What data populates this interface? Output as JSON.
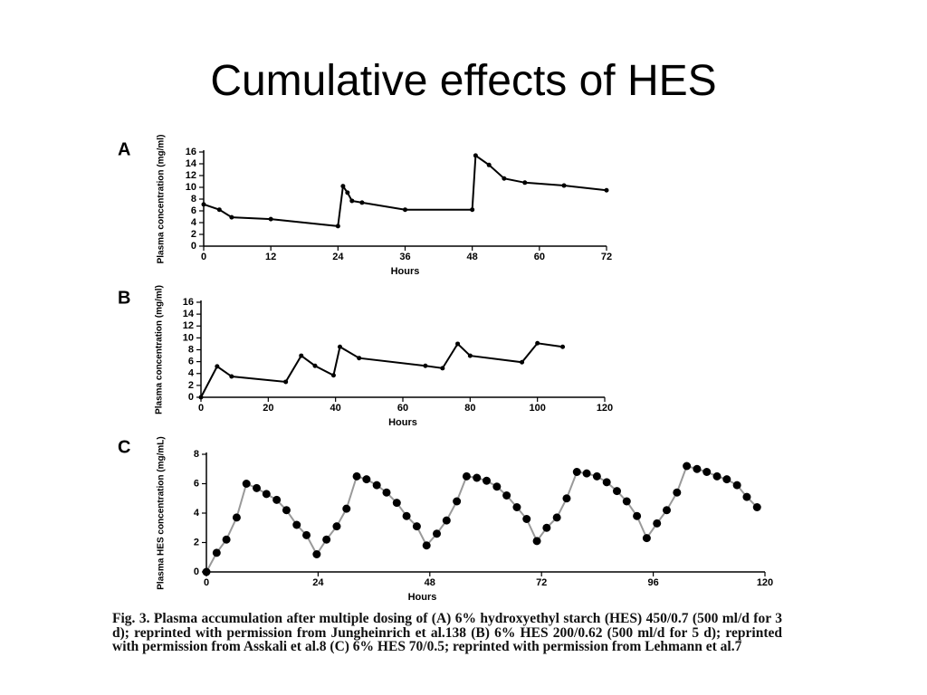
{
  "slide_title": "Cumulative effects of HES",
  "caption": "Fig. 3. Plasma accumulation after multiple dosing of (A) 6% hydroxyethyl starch (HES) 450/0.7 (500 ml/d for 3 d); reprinted with permission from Jungheinrich et al.138 (B) 6% HES 200/0.62 (500 ml/d for 5 d); reprinted with permission from Asskali et al.8 (C) 6% HES 70/0.5; reprinted with permission from Lehmann et al.7",
  "chart_data": [
    {
      "type": "line",
      "panel": "A",
      "ylabel": "Plasma concentration (mg/ml)",
      "xlabel": "Hours",
      "x": [
        0,
        2.8,
        5,
        12,
        24,
        24.9,
        25.7,
        26.5,
        28.3,
        36,
        48,
        48.6,
        51,
        53.7,
        57.4,
        64.4,
        72
      ],
      "values": [
        7.1,
        6.2,
        4.9,
        4.6,
        3.4,
        10.2,
        9.1,
        7.7,
        7.4,
        6.2,
        6.2,
        15.4,
        13.8,
        11.5,
        10.8,
        10.3,
        9.5
      ],
      "color": "#000000",
      "marker_color": "#000000",
      "xlim": [
        0,
        72
      ],
      "xticks": [
        0,
        12,
        24,
        36,
        48,
        60,
        72
      ],
      "ylim": [
        0,
        16
      ],
      "yticks": [
        0,
        2,
        4,
        6,
        8,
        10,
        12,
        14,
        16
      ]
    },
    {
      "type": "line",
      "panel": "B",
      "ylabel": "Plasma concentration (mg/ml)",
      "xlabel": "Hours",
      "x": [
        0,
        4.8,
        9.1,
        25.2,
        29.8,
        33.9,
        39.4,
        41.3,
        47,
        66.7,
        71.8,
        76.3,
        80,
        95.4,
        100,
        107.5
      ],
      "values": [
        0,
        5.2,
        3.5,
        2.6,
        7,
        5.3,
        3.7,
        8.5,
        6.6,
        5.3,
        4.9,
        9,
        7,
        5.9,
        9.1,
        8.5
      ],
      "color": "#000000",
      "marker_color": "#000000",
      "xlim": [
        0,
        120
      ],
      "xticks": [
        0,
        20,
        40,
        60,
        80,
        100,
        120
      ],
      "ylim": [
        0,
        16
      ],
      "yticks": [
        0,
        2,
        4,
        6,
        8,
        10,
        12,
        14,
        16
      ]
    },
    {
      "type": "line",
      "panel": "C",
      "ylabel": "Plasma HES concentration (mg/mL)",
      "xlabel": "Hours",
      "x": [
        0,
        2.2,
        4.3,
        6.5,
        8.6,
        10.8,
        12.9,
        15.1,
        17.2,
        19.4,
        21.5,
        23.7,
        25.8,
        28,
        30.1,
        32.3,
        34.4,
        36.6,
        38.7,
        40.9,
        43,
        45.2,
        47.3,
        49.5,
        51.6,
        53.8,
        55.9,
        58.1,
        60.2,
        62.4,
        64.5,
        66.7,
        68.8,
        71,
        73.1,
        75.3,
        77.4,
        79.6,
        81.7,
        83.9,
        86,
        88.2,
        90.3,
        92.5,
        94.6,
        96.8,
        98.9,
        101.1,
        103.2,
        105.4,
        107.5,
        109.7,
        111.8,
        114,
        116.1,
        118.3
      ],
      "values": [
        0,
        1.3,
        2.2,
        3.7,
        6.0,
        5.7,
        5.3,
        4.9,
        4.2,
        3.2,
        2.5,
        1.2,
        2.2,
        3.1,
        4.3,
        6.5,
        6.3,
        5.9,
        5.4,
        4.7,
        3.8,
        3.1,
        1.8,
        2.6,
        3.5,
        4.8,
        6.5,
        6.4,
        6.2,
        5.8,
        5.2,
        4.4,
        3.6,
        2.1,
        3.0,
        3.7,
        5.0,
        6.8,
        6.7,
        6.5,
        6.1,
        5.5,
        4.8,
        3.8,
        2.3,
        3.3,
        4.2,
        5.4,
        7.2,
        7.0,
        6.8,
        6.5,
        6.3,
        5.9,
        5.1,
        4.4
      ],
      "color": "#999999",
      "marker_color": "#000000",
      "xlim": [
        0,
        120
      ],
      "xticks": [
        0,
        24,
        48,
        72,
        96,
        120
      ],
      "ylim": [
        0,
        8
      ],
      "yticks": [
        0,
        2,
        4,
        6,
        8
      ]
    }
  ]
}
